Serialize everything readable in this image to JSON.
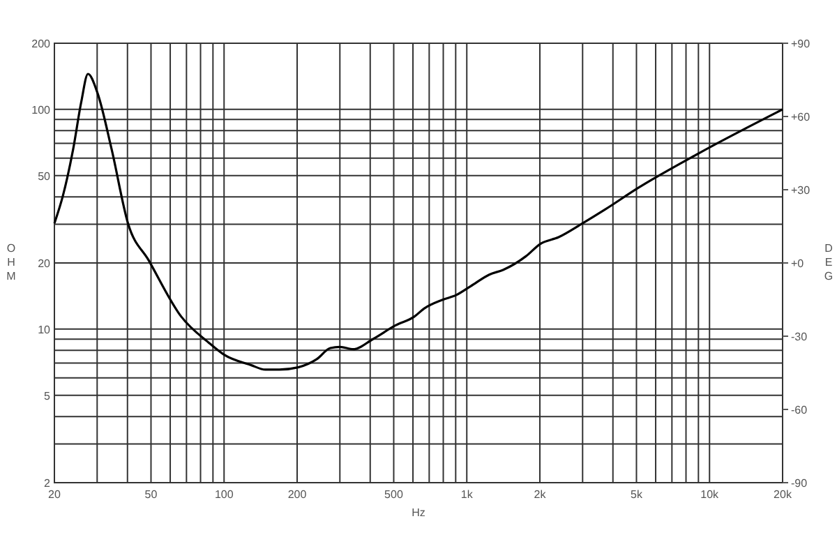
{
  "chart_data": {
    "type": "line",
    "xlabel": "Hz",
    "ylabel": "OHM",
    "y2label": "DEG",
    "log": "xy",
    "grid": true,
    "marker": "none",
    "line_style": "solid",
    "xlim": [
      20,
      20000
    ],
    "ylim": [
      2,
      200
    ],
    "y2lim": [
      -90,
      90
    ],
    "xticks": [
      20,
      {
        "value": 30,
        "label": null
      },
      {
        "value": 40,
        "label": null
      },
      50,
      {
        "value": 60,
        "label": null
      },
      {
        "value": 70,
        "label": null
      },
      {
        "value": 80,
        "label": null
      },
      {
        "value": 90,
        "label": null
      },
      100,
      200,
      {
        "value": 300,
        "label": null
      },
      {
        "value": 400,
        "label": null
      },
      500,
      {
        "value": 600,
        "label": null
      },
      {
        "value": 700,
        "label": null
      },
      {
        "value": 800,
        "label": null
      },
      {
        "value": 900,
        "label": null
      },
      {
        "value": 1000,
        "label": "1k"
      },
      {
        "value": 2000,
        "label": "2k"
      },
      {
        "value": 3000,
        "label": null
      },
      {
        "value": 4000,
        "label": null
      },
      {
        "value": 5000,
        "label": "5k"
      },
      {
        "value": 6000,
        "label": null
      },
      {
        "value": 7000,
        "label": null
      },
      {
        "value": 8000,
        "label": null
      },
      {
        "value": 9000,
        "label": null
      },
      {
        "value": 10000,
        "label": "10k"
      },
      {
        "value": 20000,
        "label": "20k"
      }
    ],
    "yticks": [
      2,
      {
        "value": 3,
        "label": null
      },
      {
        "value": 4,
        "label": null
      },
      5,
      {
        "value": 6,
        "label": null
      },
      {
        "value": 7,
        "label": null
      },
      {
        "value": 8,
        "label": null
      },
      {
        "value": 9,
        "label": null
      },
      10,
      20,
      {
        "value": 30,
        "label": null
      },
      {
        "value": 40,
        "label": null
      },
      50,
      {
        "value": 60,
        "label": null
      },
      {
        "value": 70,
        "label": null
      },
      {
        "value": 80,
        "label": null
      },
      {
        "value": 90,
        "label": null
      },
      100,
      200
    ],
    "y2ticks": [
      {
        "value": 90,
        "label": "+90"
      },
      {
        "value": 60,
        "label": "+60"
      },
      {
        "value": 30,
        "label": "+30"
      },
      {
        "value": 0,
        "label": "+0"
      },
      -30,
      -60,
      -90
    ],
    "series": [
      {
        "color": "#000000",
        "x": [
          20,
          21.7,
          23.9,
          25.8,
          27.5,
          30.1,
          34.4,
          40.2,
          49,
          66.6,
          87.3,
          99.6,
          129,
          148,
          169,
          202,
          241,
          274,
          300,
          341,
          410,
          509,
          608,
          667,
          795,
          906,
          1040,
          1238,
          1411,
          1756,
          2006,
          2390,
          3000,
          3710,
          5080,
          9000,
          20000
        ],
        "values": [
          30.3,
          40.6,
          66,
          108,
          145,
          118.7,
          66,
          30.3,
          20.5,
          11.4,
          8.6,
          7.67,
          6.86,
          6.54,
          6.54,
          6.7,
          7.3,
          8.2,
          8.3,
          8.1,
          9,
          10.4,
          11.4,
          12.4,
          13.6,
          14.3,
          15.7,
          17.7,
          18.6,
          21.5,
          24.4,
          26.2,
          30.3,
          35,
          43.9,
          63,
          100
        ]
      }
    ]
  }
}
